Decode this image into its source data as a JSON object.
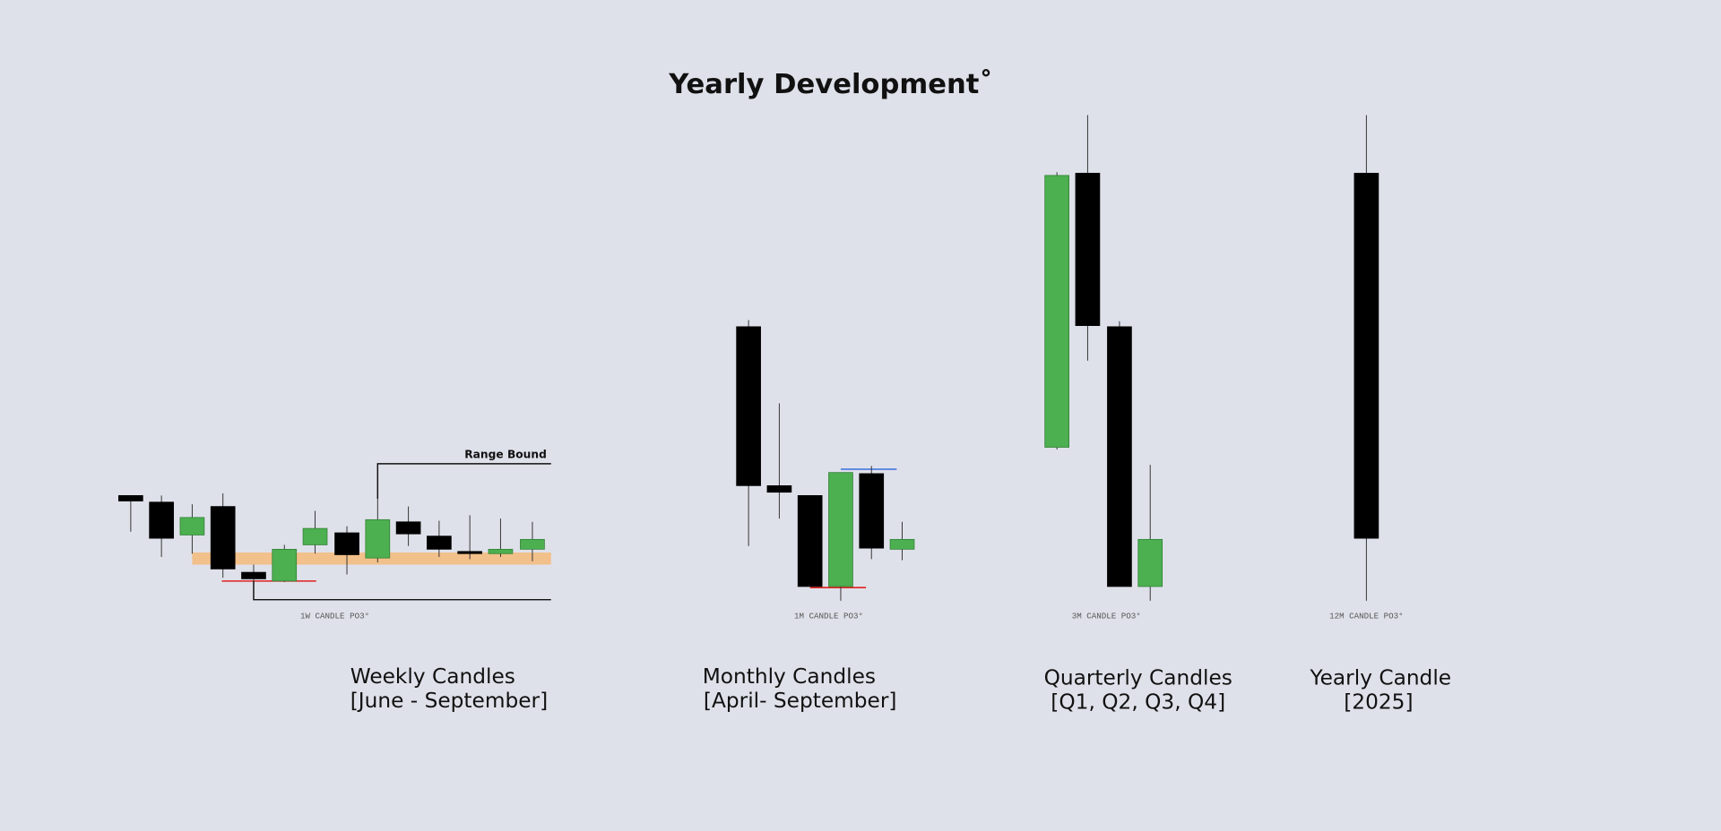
{
  "title": "Yearly Development˚",
  "range_label": "Range Bound",
  "panels": [
    {
      "tag": "1W CANDLE PO3°",
      "caption": [
        "Weekly Candles",
        "[June - September]"
      ]
    },
    {
      "tag": "1M CANDLE PO3°",
      "caption": [
        "Monthly Candles",
        "[April- September]"
      ]
    },
    {
      "tag": "3M CANDLE PO3°",
      "caption": [
        "Quarterly Candles",
        "[Q1, Q2, Q3, Q4]"
      ]
    },
    {
      "tag": "12M CANDLE PO3°",
      "caption": [
        "Yearly Candle",
        "[2025]"
      ]
    }
  ]
}
